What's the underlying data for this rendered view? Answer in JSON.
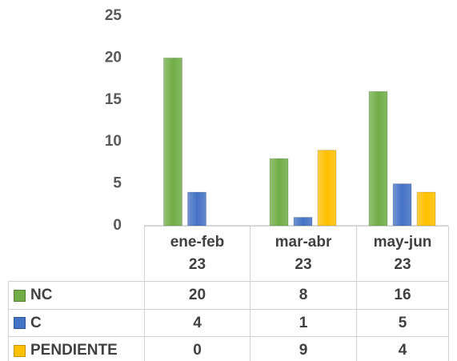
{
  "chart_data": {
    "type": "bar",
    "categories": [
      "ene-feb\n23",
      "mar-abr\n23",
      "may-jun\n23"
    ],
    "series": [
      {
        "name": "NC",
        "color": "#70ad47",
        "values": [
          20,
          8,
          16
        ]
      },
      {
        "name": "C",
        "color": "#4472c4",
        "values": [
          4,
          1,
          5
        ]
      },
      {
        "name": "PENDIENTE",
        "color": "#ffc000",
        "values": [
          0,
          9,
          4
        ]
      }
    ],
    "ylim": [
      0,
      25
    ],
    "yticks": [
      0,
      5,
      10,
      15,
      20,
      25
    ],
    "grid": false,
    "data_table": true
  }
}
